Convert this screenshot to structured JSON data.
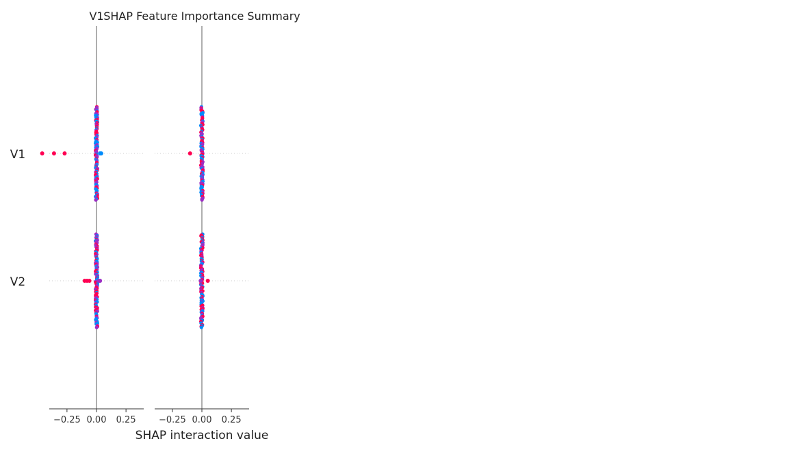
{
  "chart_data": {
    "type": "scatter",
    "title": "SHAP Feature Importance Summary",
    "xlabel": "SHAP interaction value",
    "features": [
      "V1",
      "V2"
    ],
    "colors": {
      "high": "#ff0052",
      "low": "#008bfb",
      "mid": "#9c2ec4",
      "zero_line": "#999999",
      "axis": "#333333",
      "guide": "#cccccc"
    },
    "panels": [
      {
        "title": "V1",
        "xlim": [
          -0.4,
          0.4
        ],
        "xticks": [
          -0.25,
          0.0,
          0.25
        ],
        "xtick_labels": [
          "−0.25",
          "0.00",
          "0.25"
        ],
        "outliers": [
          {
            "feature": "V1",
            "value": -0.46,
            "color": "high"
          },
          {
            "feature": "V1",
            "value": -0.36,
            "color": "high"
          },
          {
            "feature": "V1",
            "value": -0.27,
            "color": "high"
          },
          {
            "feature": "V1",
            "value": 0.04,
            "color": "low"
          },
          {
            "feature": "V1",
            "value": 0.03,
            "color": "low"
          },
          {
            "feature": "V2",
            "value": -0.1,
            "color": "high"
          },
          {
            "feature": "V2",
            "value": -0.08,
            "color": "high"
          },
          {
            "feature": "V2",
            "value": -0.06,
            "color": "high"
          },
          {
            "feature": "V2",
            "value": 0.03,
            "color": "mid"
          },
          {
            "feature": "V2",
            "value": 0.02,
            "color": "mid"
          }
        ]
      },
      {
        "title": "",
        "xlim": [
          -0.4,
          0.4
        ],
        "xticks": [
          -0.25,
          0.0,
          0.25
        ],
        "xtick_labels": [
          "−0.25",
          "0.00",
          "0.25"
        ],
        "outliers": [
          {
            "feature": "V1",
            "value": -0.1,
            "color": "high"
          },
          {
            "feature": "V2",
            "value": 0.05,
            "color": "high"
          },
          {
            "feature": "V2",
            "value": -0.01,
            "color": "mid"
          }
        ]
      }
    ],
    "grid": false,
    "legend": "none"
  }
}
